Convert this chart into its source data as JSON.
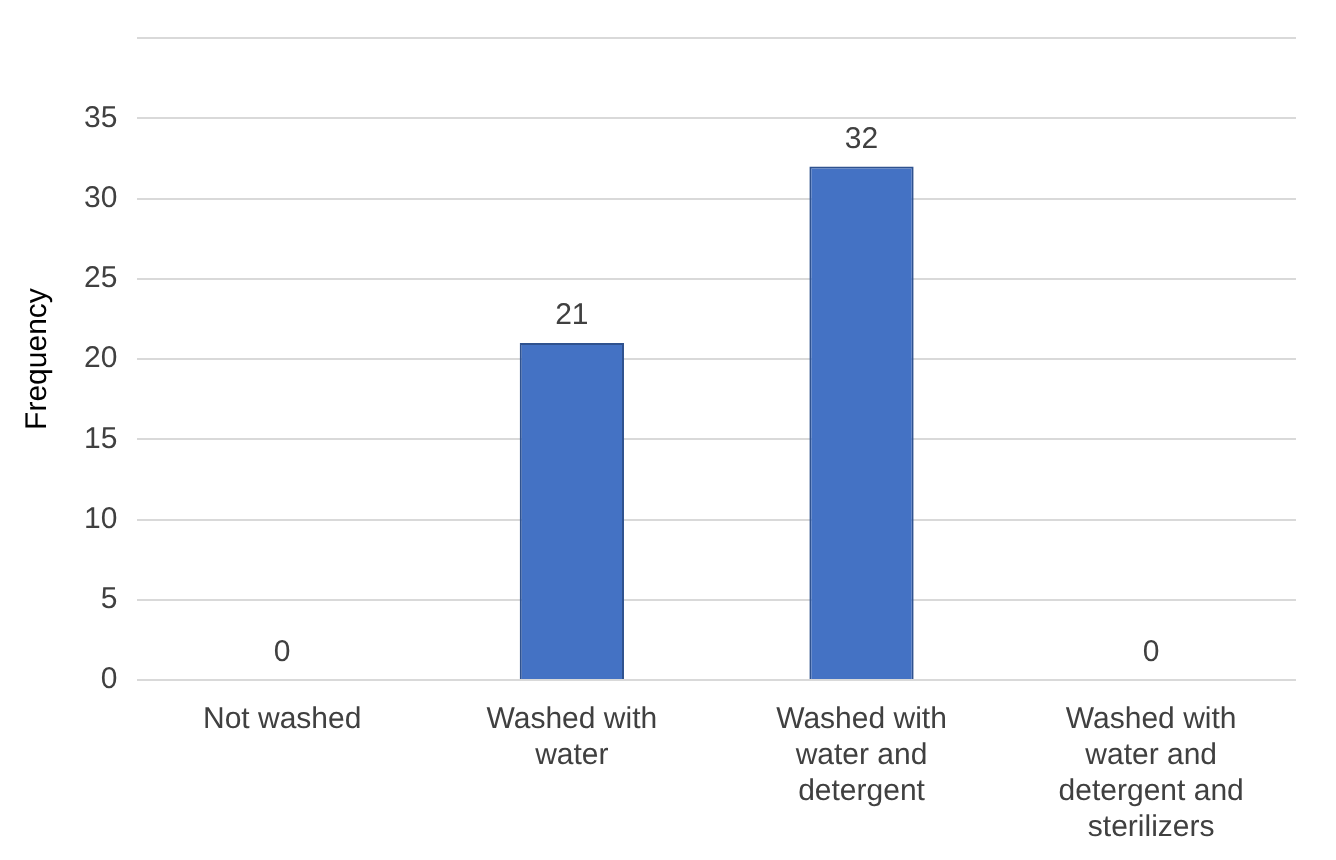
{
  "chart_data": {
    "type": "bar",
    "ylabel": "Frequency",
    "categories": [
      "Not washed",
      "Washed with water",
      "Washed with water and detergent",
      "Washed with water and detergent and sterilizers"
    ],
    "values": [
      0,
      21,
      32,
      0
    ],
    "color": "#4472c4",
    "ylim": [
      0,
      40
    ],
    "yticks": [
      0,
      5,
      10,
      15,
      20,
      25,
      30,
      35,
      {
        "value": 40,
        "label": null
      }
    ],
    "grid": "y",
    "data_labels": true
  }
}
